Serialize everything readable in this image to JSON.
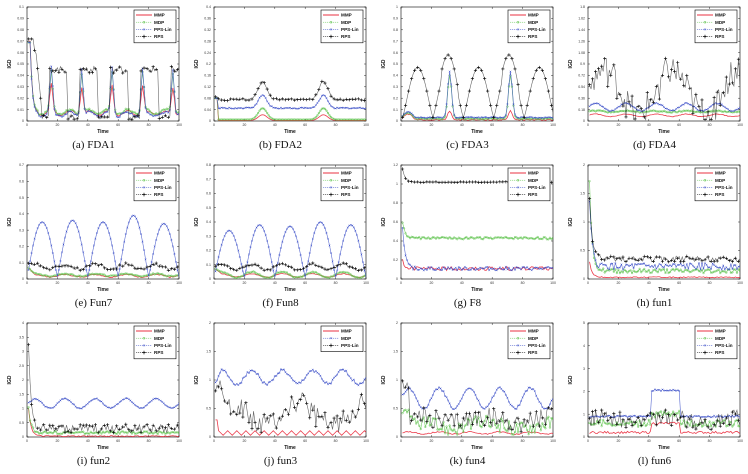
{
  "figure": {
    "series_styles": {
      "MMP": {
        "color": "#e8192c",
        "marker": "none"
      },
      "MDP": {
        "color": "#5cc24a",
        "marker": "circle"
      },
      "PPS-Lin": {
        "color": "#3b4fc8",
        "marker": "x"
      },
      "RPS": {
        "color": "#000000",
        "marker": "plus"
      }
    }
  },
  "chart_data": [
    {
      "id": "a",
      "type": "line",
      "caption": "(a)  FDA1",
      "xlabel": "Time",
      "ylabel": "IGD",
      "xlim": [
        0,
        100
      ],
      "ylim": [
        0,
        0.1
      ],
      "xticks": [
        0,
        20,
        40,
        60,
        80,
        100
      ],
      "yticks": [
        0,
        0.01,
        0.02,
        0.03,
        0.04,
        0.05,
        0.06,
        0.07,
        0.08,
        0.09,
        0.1
      ],
      "legend": [
        "MMP",
        "MDP",
        "PPS-Lin",
        "RPS"
      ],
      "legend_placement": "top-right",
      "series": [
        {
          "name": "MMP",
          "pattern": "fda1_low",
          "peak": 0.07,
          "base": 0.007,
          "peaks": 0.024
        },
        {
          "name": "MDP",
          "pattern": "fda1_low",
          "peak": 0.069,
          "base": 0.008,
          "peaks": 0.035
        },
        {
          "name": "PPS-Lin",
          "pattern": "fda1_low",
          "peak": 0.069,
          "base": 0.006,
          "peaks": 0.04
        },
        {
          "name": "RPS",
          "pattern": "fda1_rps",
          "high": 0.045,
          "low": 0.003,
          "start": 0.072
        }
      ]
    },
    {
      "id": "b",
      "type": "line",
      "caption": "(b)  FDA2",
      "xlabel": "Time",
      "ylabel": "IGD",
      "xlim": [
        0,
        100
      ],
      "ylim": [
        0,
        0.4
      ],
      "xticks": [
        0,
        20,
        40,
        60,
        80,
        100
      ],
      "yticks": [
        0,
        0.04,
        0.08,
        0.12,
        0.16,
        0.2,
        0.24,
        0.28,
        0.32,
        0.36,
        0.4
      ],
      "legend": [
        "MMP",
        "MDP",
        "PPS-Lin",
        "RPS"
      ],
      "legend_placement": "top-right",
      "series": [
        {
          "name": "MMP",
          "pattern": "bumps2",
          "base": 0.002,
          "bump": 0.02,
          "start": 0.08
        },
        {
          "name": "MDP",
          "pattern": "bumps2",
          "base": 0.005,
          "bump": 0.04,
          "start": 0.08
        },
        {
          "name": "PPS-Lin",
          "pattern": "bumps2",
          "base": 0.045,
          "bump": 0.045,
          "start": 0.08
        },
        {
          "name": "RPS",
          "pattern": "bumps2",
          "base": 0.075,
          "bump": 0.065,
          "start": 0.085
        }
      ]
    },
    {
      "id": "c",
      "type": "line",
      "caption": "(c)  FDA3",
      "xlabel": "Time",
      "ylabel": "IGD",
      "xlim": [
        0,
        100
      ],
      "ylim": [
        0,
        1
      ],
      "xticks": [
        0,
        20,
        40,
        60,
        80,
        100
      ],
      "yticks": [
        0,
        0.1,
        0.2,
        0.3,
        0.4,
        0.5,
        0.6,
        0.7,
        0.8,
        0.9,
        1
      ],
      "legend": [
        "MMP",
        "MDP",
        "PPS-Lin",
        "RPS"
      ],
      "legend_placement": "top-right",
      "series": [
        {
          "name": "MMP",
          "pattern": "fda3_low",
          "base": 0.01,
          "spike": 0.08
        },
        {
          "name": "MDP",
          "pattern": "fda3_low",
          "base": 0.02,
          "spike": 0.38
        },
        {
          "name": "PPS-Lin",
          "pattern": "fda3_low",
          "base": 0.03,
          "spike": 0.4
        },
        {
          "name": "RPS",
          "pattern": "fda3_rps",
          "amp": 0.44,
          "amp2": 0.55
        }
      ]
    },
    {
      "id": "d",
      "type": "line",
      "caption": "(d)  FDA4",
      "xlabel": "Time",
      "ylabel": "IGD",
      "xlim": [
        0,
        100
      ],
      "ylim": [
        0,
        1.8
      ],
      "xticks": [
        0,
        20,
        40,
        60,
        80,
        100
      ],
      "yticks": [
        0,
        0.18,
        0.36,
        0.54,
        0.72,
        0.9,
        1.08,
        1.26,
        1.44,
        1.62,
        1.8
      ],
      "legend": [
        "MMP",
        "MDP",
        "PPS-Lin",
        "RPS"
      ],
      "legend_placement": "top-right",
      "series": [
        {
          "name": "MMP",
          "pattern": "wavy",
          "base": 0.09,
          "amp": 0.02,
          "noise": 0.005
        },
        {
          "name": "MDP",
          "pattern": "wavy",
          "base": 0.15,
          "amp": 0.01,
          "noise": 0.01
        },
        {
          "name": "PPS-Lin",
          "pattern": "wavy",
          "base": 0.22,
          "amp": 0.06,
          "noise": 0.01
        },
        {
          "name": "RPS",
          "pattern": "noisy",
          "base": 0.45,
          "amp": 0.35,
          "noise": 0.25
        }
      ]
    },
    {
      "id": "e",
      "type": "line",
      "caption": "(e)  Fun7",
      "xlabel": "Time",
      "ylabel": "IGD",
      "xlim": [
        0,
        100
      ],
      "ylim": [
        0,
        0.7
      ],
      "xticks": [
        0,
        20,
        40,
        60,
        80,
        100
      ],
      "yticks": [
        0,
        0.1,
        0.2,
        0.3,
        0.4,
        0.5,
        0.6,
        0.7
      ],
      "legend": [
        "MMP",
        "MDP",
        "PPS-Lin",
        "RPS"
      ],
      "legend_placement": "top-right",
      "series": [
        {
          "name": "MMP",
          "pattern": "wavy",
          "base": 0.02,
          "amp": 0.008,
          "noise": 0.004,
          "start": 0.08
        },
        {
          "name": "MDP",
          "pattern": "wavy",
          "base": 0.025,
          "amp": 0.008,
          "noise": 0.004,
          "start": 0.08
        },
        {
          "name": "PPS-Lin",
          "pattern": "arches",
          "amp": 0.35,
          "peaks": [
            0.35,
            0.36,
            0.35,
            0.39,
            0.34
          ]
        },
        {
          "name": "RPS",
          "pattern": "wavy",
          "base": 0.075,
          "amp": 0.015,
          "noise": 0.01,
          "start": 0.1
        }
      ]
    },
    {
      "id": "f",
      "type": "line",
      "caption": "(f)  Fun8",
      "xlabel": "Time",
      "ylabel": "IGD",
      "xlim": [
        0,
        100
      ],
      "ylim": [
        0,
        0.8
      ],
      "xticks": [
        0,
        20,
        40,
        60,
        80,
        100
      ],
      "yticks": [
        0,
        0.1,
        0.2,
        0.3,
        0.4,
        0.5,
        0.6,
        0.7,
        0.8
      ],
      "legend": [
        "MMP",
        "MDP",
        "PPS-Lin",
        "RPS"
      ],
      "legend_placement": "top-right",
      "series": [
        {
          "name": "MMP",
          "pattern": "wavy",
          "base": 0.025,
          "amp": 0.012,
          "noise": 0.003,
          "start": 0.08
        },
        {
          "name": "MDP",
          "pattern": "wavy",
          "base": 0.03,
          "amp": 0.02,
          "noise": 0.004,
          "start": 0.08
        },
        {
          "name": "PPS-Lin",
          "pattern": "arches",
          "amp": 0.35,
          "peaks": [
            0.34,
            0.38,
            0.37,
            0.4,
            0.38
          ]
        },
        {
          "name": "RPS",
          "pattern": "wavy",
          "base": 0.085,
          "amp": 0.02,
          "noise": 0.008,
          "start": 0.09
        }
      ]
    },
    {
      "id": "g",
      "type": "line",
      "caption": "(g)  F8",
      "xlabel": "Time",
      "ylabel": "IGD",
      "xlim": [
        0,
        100
      ],
      "ylim": [
        0,
        1.2
      ],
      "xticks": [
        0,
        20,
        40,
        60,
        80,
        100
      ],
      "yticks": [
        0,
        0.2,
        0.4,
        0.6,
        0.8,
        1,
        1.2
      ],
      "legend": [
        "MMP",
        "MDP",
        "PPS-Lin",
        "RPS"
      ],
      "legend_placement": "top-right",
      "series": [
        {
          "name": "MMP",
          "pattern": "decay",
          "start": 0.2,
          "base": 0.11,
          "noise": 0.02
        },
        {
          "name": "MDP",
          "pattern": "decay",
          "start": 0.6,
          "base": 0.43,
          "noise": 0.012
        },
        {
          "name": "PPS-Lin",
          "pattern": "decay",
          "start": 0.53,
          "base": 0.11,
          "noise": 0.02
        },
        {
          "name": "RPS",
          "pattern": "decay",
          "start": 1.16,
          "base": 1.02,
          "noise": 0.004
        }
      ]
    },
    {
      "id": "h",
      "type": "line",
      "caption": "(h)  fun1",
      "xlabel": "Time",
      "ylabel": "IGD",
      "xlim": [
        0,
        100
      ],
      "ylim": [
        0,
        2
      ],
      "xticks": [
        0,
        20,
        40,
        60,
        80,
        100
      ],
      "yticks": [
        0,
        0.5,
        1,
        1.5,
        2
      ],
      "legend": [
        "MMP",
        "MDP",
        "PPS-Lin",
        "RPS"
      ],
      "legend_placement": "top-right",
      "series": [
        {
          "name": "MMP",
          "pattern": "decay",
          "start": 0.3,
          "base": 0.03,
          "noise": 0.01
        },
        {
          "name": "MDP",
          "pattern": "decay",
          "start": 1.75,
          "base": 0.14,
          "noise": 0.04
        },
        {
          "name": "PPS-Lin",
          "pattern": "decay",
          "start": 1.35,
          "base": 0.22,
          "noise": 0.06
        },
        {
          "name": "RPS",
          "pattern": "decay",
          "start": 1.45,
          "base": 0.35,
          "noise": 0.05
        }
      ]
    },
    {
      "id": "i",
      "type": "line",
      "caption": "(i)  fun2",
      "xlabel": "Time",
      "ylabel": "IGD",
      "xlim": [
        0,
        100
      ],
      "ylim": [
        0,
        4
      ],
      "xticks": [
        0,
        20,
        40,
        60,
        80,
        100
      ],
      "yticks": [
        0,
        0.5,
        1,
        1.5,
        2,
        2.5,
        3,
        3.5,
        4
      ],
      "legend": [
        "MMP",
        "MDP",
        "PPS-Lin",
        "RPS"
      ],
      "legend_placement": "top-right",
      "series": [
        {
          "name": "MMP",
          "pattern": "decay",
          "start": 1.0,
          "base": 0.03,
          "noise": 0.02
        },
        {
          "name": "MDP",
          "pattern": "decay",
          "start": 1.0,
          "base": 0.15,
          "noise": 0.05
        },
        {
          "name": "PPS-Lin",
          "pattern": "wavy",
          "base": 1.18,
          "amp": 0.17,
          "noise": 0.02,
          "start": 1.2
        },
        {
          "name": "RPS",
          "pattern": "decay",
          "start": 3.1,
          "base": 0.3,
          "noise": 0.15
        }
      ]
    },
    {
      "id": "j",
      "type": "line",
      "caption": "(j)  fun3",
      "xlabel": "Time",
      "ylabel": "IGD",
      "xlim": [
        0,
        100
      ],
      "ylim": [
        0,
        2
      ],
      "xticks": [
        0,
        20,
        40,
        60,
        80,
        100
      ],
      "yticks": [
        0,
        0.5,
        1,
        1.5,
        2
      ],
      "legend": [
        "MMP",
        "MDP",
        "PPS-Lin"
      ],
      "legend_placement": "top-right",
      "series": [
        {
          "name": "MMP",
          "pattern": "zigzag",
          "base": 0.03,
          "amp": 0.08,
          "start": 0.3
        },
        {
          "name": "MDP",
          "pattern": "wavy",
          "base": 1.05,
          "amp": 0.12,
          "noise": 0.03,
          "start": 0.92
        },
        {
          "name": "PPS-Lin",
          "pattern": "noisy",
          "base": 0.4,
          "amp": 0.2,
          "noise": 0.2,
          "start": 0.9
        }
      ]
    },
    {
      "id": "k",
      "type": "line",
      "caption": "(k)  fun4",
      "xlabel": "Time",
      "ylabel": "IGD",
      "xlim": [
        0,
        100
      ],
      "ylim": [
        0,
        2
      ],
      "xticks": [
        0,
        20,
        40,
        60,
        80,
        100
      ],
      "yticks": [
        0,
        0.5,
        1,
        1.5,
        2
      ],
      "legend": [
        "MMP",
        "MDP",
        "PPS-Lin",
        "RPS"
      ],
      "legend_placement": "top-right",
      "series": [
        {
          "name": "MMP",
          "pattern": "wavy",
          "base": 0.07,
          "amp": 0.02,
          "noise": 0.01
        },
        {
          "name": "MDP",
          "pattern": "noisy",
          "base": 0.2,
          "amp": 0.05,
          "noise": 0.13,
          "start": 0.45
        },
        {
          "name": "PPS-Lin",
          "pattern": "wavy",
          "base": 0.68,
          "amp": 0.18,
          "noise": 0.02,
          "start": 0.75
        },
        {
          "name": "RPS",
          "pattern": "noisy",
          "base": 0.3,
          "amp": 0.05,
          "noise": 0.17,
          "start": 0.9
        }
      ]
    },
    {
      "id": "l",
      "type": "line",
      "caption": "(l)  fun6",
      "xlabel": "Time",
      "ylabel": "IGD",
      "xlim": [
        0,
        100
      ],
      "ylim": [
        0,
        5
      ],
      "xticks": [
        0,
        20,
        40,
        60,
        80,
        100
      ],
      "yticks": [
        0,
        1,
        2,
        3,
        4,
        5
      ],
      "legend": [
        "MMP",
        "MDP",
        "PPS-Lin",
        "RPS"
      ],
      "legend_placement": "top-right",
      "series": [
        {
          "name": "MMP",
          "pattern": "step",
          "base": 0.2,
          "high": 0.6,
          "noise": 0.05
        },
        {
          "name": "MDP",
          "pattern": "step",
          "base": 0.6,
          "high": 1.0,
          "noise": 0.15
        },
        {
          "name": "PPS-Lin",
          "pattern": "step",
          "base": 0.9,
          "high": 2.05,
          "noise": 0.04
        },
        {
          "name": "RPS",
          "pattern": "noisy",
          "base": 0.75,
          "amp": 0.1,
          "noise": 0.35
        }
      ]
    }
  ]
}
